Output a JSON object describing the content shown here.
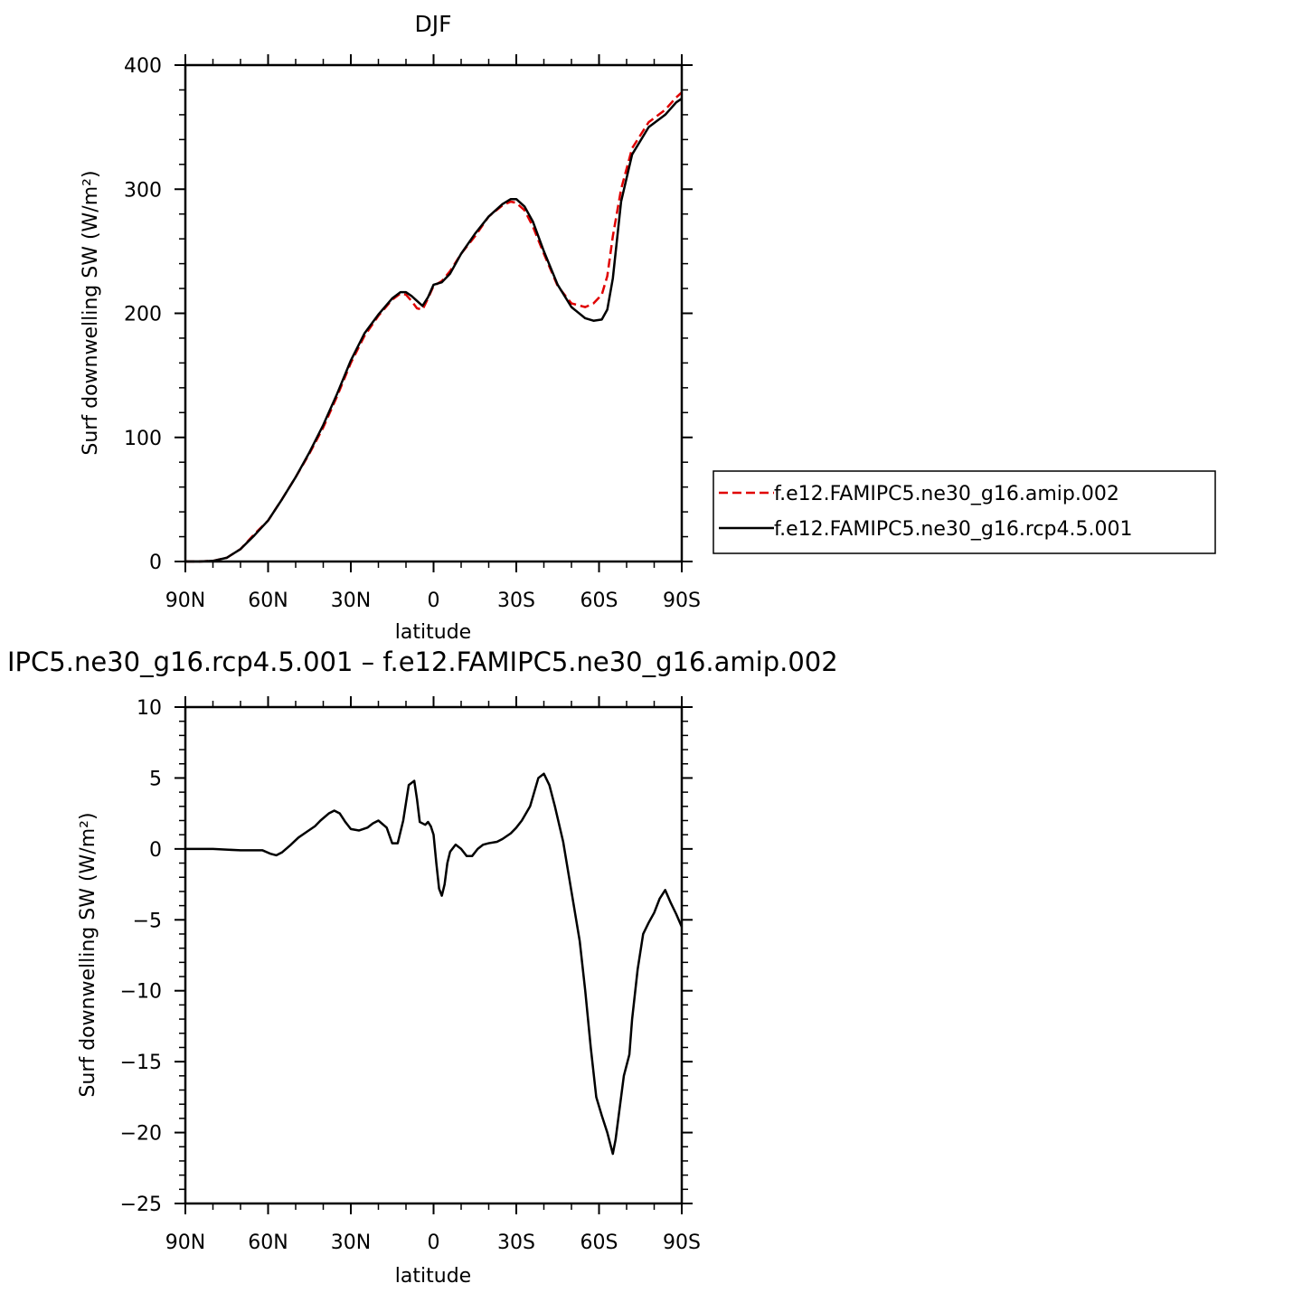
{
  "chart_data": [
    {
      "type": "line",
      "title": "DJF",
      "xlabel": "latitude",
      "ylabel": "Surf downwelling SW (W/m²)",
      "xlim": [
        -90,
        90
      ],
      "ylim": [
        0,
        400
      ],
      "x_tick_values": [
        -90,
        -60,
        -30,
        0,
        30,
        60,
        90
      ],
      "x_tick_labels": [
        "90N",
        "60N",
        "30N",
        "0",
        "30S",
        "60S",
        "90S"
      ],
      "y_tick_values": [
        0,
        100,
        200,
        300,
        400
      ],
      "y_tick_labels": [
        "0",
        "100",
        "200",
        "300",
        "400"
      ],
      "grid": false,
      "legend": "right",
      "series": [
        {
          "name": "f.e12.FAMIPC5.ne30_g16.amip.002",
          "color": "#e00000",
          "dash": "dashed",
          "x": [
            -90,
            -85,
            -80,
            -75,
            -70,
            -65,
            -60,
            -55,
            -50,
            -45,
            -40,
            -35,
            -30,
            -25,
            -20,
            -15,
            -12,
            -10,
            -8,
            -6,
            -4,
            -2,
            0,
            3,
            6,
            10,
            15,
            20,
            25,
            28,
            30,
            33,
            36,
            40,
            45,
            50,
            55,
            58,
            61,
            63,
            65,
            68,
            72,
            78,
            84,
            88,
            90
          ],
          "y": [
            0,
            0,
            0.5,
            3,
            10,
            22,
            33,
            50,
            68,
            87,
            108,
            133,
            160,
            182,
            198,
            211,
            216,
            215,
            210,
            204,
            203,
            212,
            222,
            226,
            234,
            248,
            262,
            278,
            287,
            290,
            289,
            283,
            270,
            248,
            222,
            208,
            205,
            208,
            215,
            230,
            262,
            300,
            333,
            354,
            364,
            374,
            378
          ]
        },
        {
          "name": "f.e12.FAMIPC5.ne30_g16.rcp4.5.001",
          "color": "#000000",
          "dash": "solid",
          "x": [
            -90,
            -85,
            -80,
            -75,
            -70,
            -65,
            -60,
            -55,
            -50,
            -45,
            -40,
            -35,
            -30,
            -25,
            -20,
            -15,
            -12,
            -10,
            -8,
            -6,
            -4,
            -2,
            0,
            3,
            6,
            10,
            15,
            20,
            25,
            28,
            30,
            33,
            36,
            40,
            45,
            50,
            55,
            58,
            61,
            63,
            65,
            68,
            72,
            78,
            84,
            88,
            90
          ],
          "y": [
            0,
            0,
            0.5,
            3,
            10,
            21,
            33,
            50,
            68,
            88,
            110,
            135,
            162,
            184,
            199,
            212,
            217,
            217,
            214,
            210,
            206,
            213,
            223,
            225,
            232,
            248,
            264,
            278,
            288,
            292,
            292,
            286,
            274,
            250,
            223,
            205,
            196,
            194,
            195,
            203,
            228,
            290,
            328,
            350,
            360,
            370,
            373
          ]
        }
      ]
    },
    {
      "type": "line",
      "title": "IPC5.ne30_g16.rcp4.5.001 – f.e12.FAMIPC5.ne30_g16.amip.002",
      "xlabel": "latitude",
      "ylabel": "Surf downwelling SW (W/m²)",
      "xlim": [
        -90,
        90
      ],
      "ylim": [
        -25,
        10
      ],
      "x_tick_values": [
        -90,
        -60,
        -30,
        0,
        30,
        60,
        90
      ],
      "x_tick_labels": [
        "90N",
        "60N",
        "30N",
        "0",
        "30S",
        "60S",
        "90S"
      ],
      "y_tick_values": [
        10,
        5,
        0,
        -5,
        -10,
        -15,
        -20,
        -25
      ],
      "y_tick_labels": [
        "10",
        "5",
        "0",
        "−5",
        "−10",
        "−15",
        "−20",
        "−25"
      ],
      "grid": false,
      "series": [
        {
          "color": "#000000",
          "dash": "solid",
          "x": [
            -90,
            -80,
            -70,
            -65,
            -62,
            -59,
            -57,
            -55,
            -52,
            -49,
            -46,
            -43,
            -41,
            -38,
            -36,
            -34,
            -32,
            -30,
            -27,
            -24,
            -22,
            -20,
            -17,
            -15,
            -13,
            -11,
            -9,
            -7,
            -6,
            -5,
            -3,
            -2,
            -1,
            0,
            1,
            2,
            3,
            4,
            5,
            6,
            8,
            10,
            12,
            14,
            16,
            18,
            20,
            23,
            25,
            28,
            30,
            32,
            35,
            38,
            40,
            42,
            44,
            47,
            50,
            53,
            55,
            57,
            59,
            61,
            63,
            65,
            66,
            67,
            69,
            71,
            72,
            74,
            76,
            78,
            80,
            82,
            84,
            86,
            88,
            90
          ],
          "y": [
            0,
            0,
            -0.1,
            -0.1,
            -0.1,
            -0.35,
            -0.45,
            -0.25,
            0.25,
            0.8,
            1.2,
            1.6,
            2.0,
            2.5,
            2.7,
            2.5,
            1.9,
            1.4,
            1.3,
            1.5,
            1.8,
            2.0,
            1.5,
            0.4,
            0.4,
            2.0,
            4.5,
            4.8,
            3.5,
            1.9,
            1.7,
            1.9,
            1.6,
            1.0,
            -1.0,
            -2.8,
            -3.3,
            -2.5,
            -1.0,
            -0.2,
            0.3,
            0.0,
            -0.5,
            -0.5,
            0.0,
            0.3,
            0.4,
            0.5,
            0.7,
            1.1,
            1.5,
            2.0,
            3.0,
            5.0,
            5.3,
            4.5,
            3.0,
            0.5,
            -3.0,
            -6.5,
            -10.0,
            -14.0,
            -17.5,
            -18.8,
            -20.0,
            -21.5,
            -20.5,
            -19.0,
            -16.0,
            -14.5,
            -12.0,
            -8.5,
            -6.0,
            -5.2,
            -4.5,
            -3.5,
            -2.9,
            -3.8,
            -4.6,
            -5.5
          ]
        }
      ]
    }
  ]
}
